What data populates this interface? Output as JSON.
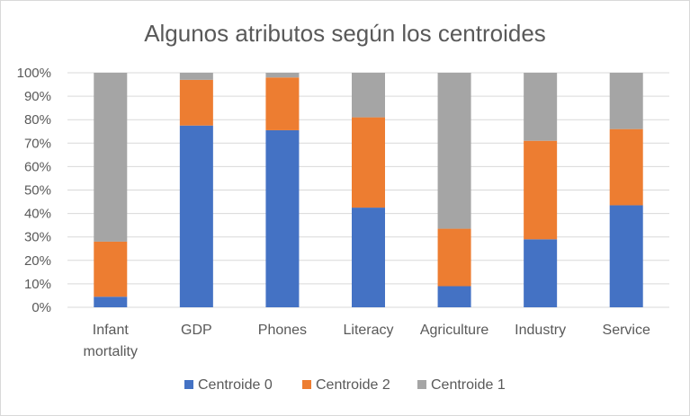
{
  "chart_data": {
    "type": "bar",
    "stacked": "percent",
    "title": "Algunos atributos según los centroides",
    "categories": [
      [
        "Infant",
        "mortality"
      ],
      [
        "GDP"
      ],
      [
        "Phones"
      ],
      [
        "Literacy"
      ],
      [
        "Agriculture"
      ],
      [
        "Industry"
      ],
      [
        "Service"
      ]
    ],
    "series": [
      {
        "name": "Centroide 0",
        "color": "#4472C4",
        "values": [
          4.5,
          77.5,
          75.5,
          42.5,
          9,
          29,
          43.5
        ]
      },
      {
        "name": "Centroide 2",
        "color": "#ED7D31",
        "values": [
          23.5,
          19.5,
          22.5,
          38.5,
          24.5,
          42,
          32.5
        ]
      },
      {
        "name": "Centroide 1",
        "color": "#A5A5A5",
        "values": [
          72,
          3,
          2,
          19,
          66.5,
          29,
          24
        ]
      }
    ],
    "y_ticks": [
      "0%",
      "10%",
      "20%",
      "30%",
      "40%",
      "50%",
      "60%",
      "70%",
      "80%",
      "90%",
      "100%"
    ],
    "ylim": [
      0,
      100
    ],
    "grid": true,
    "legend_position": "bottom"
  }
}
